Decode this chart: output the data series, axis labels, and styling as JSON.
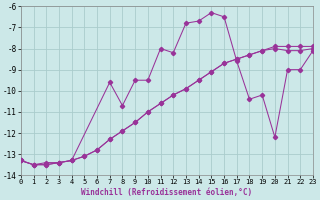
{
  "xlabel": "Windchill (Refroidissement éolien,°C)",
  "xlim": [
    0,
    23
  ],
  "ylim": [
    -14,
    -6
  ],
  "yticks": [
    -14,
    -13,
    -12,
    -11,
    -10,
    -9,
    -8,
    -7,
    -6
  ],
  "xticks": [
    0,
    1,
    2,
    3,
    4,
    5,
    6,
    7,
    8,
    9,
    10,
    11,
    12,
    13,
    14,
    15,
    16,
    17,
    18,
    19,
    20,
    21,
    22,
    23
  ],
  "background_color": "#cce8e8",
  "grid_color": "#aacccc",
  "line_color": "#993399",
  "series1_x": [
    0,
    1,
    2,
    3,
    4,
    5,
    6,
    7,
    8,
    9,
    10,
    11,
    12,
    13,
    14,
    15,
    16,
    17,
    18,
    19,
    20,
    21,
    22,
    23
  ],
  "series1_y": [
    -13.3,
    -13.5,
    -13.5,
    -13.4,
    -13.3,
    -13.1,
    -12.8,
    -12.3,
    -11.9,
    -11.5,
    -11.0,
    -10.6,
    -10.2,
    -9.9,
    -9.5,
    -9.1,
    -8.7,
    -8.5,
    -8.3,
    -8.1,
    -7.9,
    -7.9,
    -7.9,
    -7.9
  ],
  "series2_x": [
    0,
    1,
    2,
    3,
    4,
    5,
    6,
    7,
    8,
    9,
    10,
    11,
    12,
    13,
    14,
    15,
    16,
    17,
    18,
    19,
    20,
    21,
    22,
    23
  ],
  "series2_y": [
    -13.3,
    -13.5,
    -13.5,
    -13.4,
    -13.3,
    -13.1,
    -12.8,
    -12.3,
    -11.9,
    -11.5,
    -11.0,
    -10.6,
    -10.2,
    -9.9,
    -9.5,
    -9.1,
    -8.7,
    -8.5,
    -8.3,
    -8.1,
    -8.0,
    -8.1,
    -8.1,
    -8.0
  ],
  "series3_x": [
    0,
    1,
    2,
    3,
    4,
    7,
    8,
    9,
    10,
    11,
    12,
    13,
    14,
    15,
    16,
    17,
    18,
    19,
    20,
    21,
    22,
    23
  ],
  "series3_y": [
    -13.3,
    -13.5,
    -13.4,
    -13.4,
    -13.3,
    -9.6,
    -10.7,
    -9.5,
    -9.5,
    -8.0,
    -8.2,
    -6.8,
    -6.7,
    -6.3,
    -6.5,
    -8.6,
    -10.4,
    -10.2,
    -12.2,
    -9.0,
    -9.0,
    -8.1
  ]
}
